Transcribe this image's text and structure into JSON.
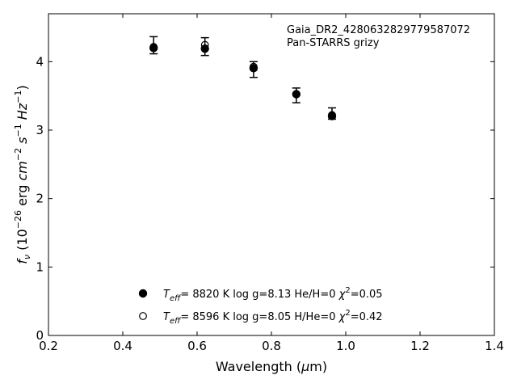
{
  "chart_data": {
    "type": "scatter",
    "annotation": [
      "Gaia_DR2_4280632829779587072",
      "Pan-STARRS grizy"
    ],
    "xlabel": {
      "prefix": "Wavelength (",
      "greek": "μ",
      "suffix": "m)"
    },
    "ylabel": "f_ν (10^-26 erg cm^-2 s^-1 Hz^-1)",
    "xlim": [
      0.2,
      1.4
    ],
    "ylim": [
      0,
      4.7
    ],
    "xticks": [
      "0.2",
      "0.4",
      "0.6",
      "0.8",
      "1.0",
      "1.2",
      "1.4"
    ],
    "yticks": [
      "0",
      "1",
      "2",
      "3",
      "4"
    ],
    "observed": {
      "x": [
        0.483,
        0.621,
        0.752,
        0.867,
        0.963
      ],
      "y": [
        4.235,
        4.25,
        3.89,
        3.515,
        3.24
      ],
      "yerr_low": [
        4.115,
        4.09,
        3.77,
        3.4,
        3.16
      ],
      "yerr_high": [
        4.365,
        4.35,
        4.0,
        3.615,
        3.325
      ]
    },
    "series": [
      {
        "name": "Teff= 8820 K log g=8.13 He/H=0 chi2=0.05",
        "marker": "filled",
        "x": [
          0.483,
          0.621,
          0.752,
          0.867,
          0.963
        ],
        "y": [
          4.2,
          4.19,
          3.905,
          3.525,
          3.205
        ]
      },
      {
        "name": "Teff= 8596 K log g=8.05 H/He=0 chi2=0.42",
        "marker": "open",
        "x": [
          0.483,
          0.621,
          0.752,
          0.867,
          0.963
        ],
        "y": [
          4.215,
          4.245,
          3.925,
          3.525,
          3.22
        ]
      }
    ],
    "legend": [
      {
        "marker": "filled",
        "teff": "8820 K",
        "logg": "log g=8.13",
        "comp": "He/H=0",
        "chi2": "=0.05"
      },
      {
        "marker": "open",
        "teff": "8596 K",
        "logg": "log g=8.05",
        "comp": "H/He=0",
        "chi2": "=0.42"
      }
    ],
    "legend_location": "lower-center",
    "grid": false
  }
}
